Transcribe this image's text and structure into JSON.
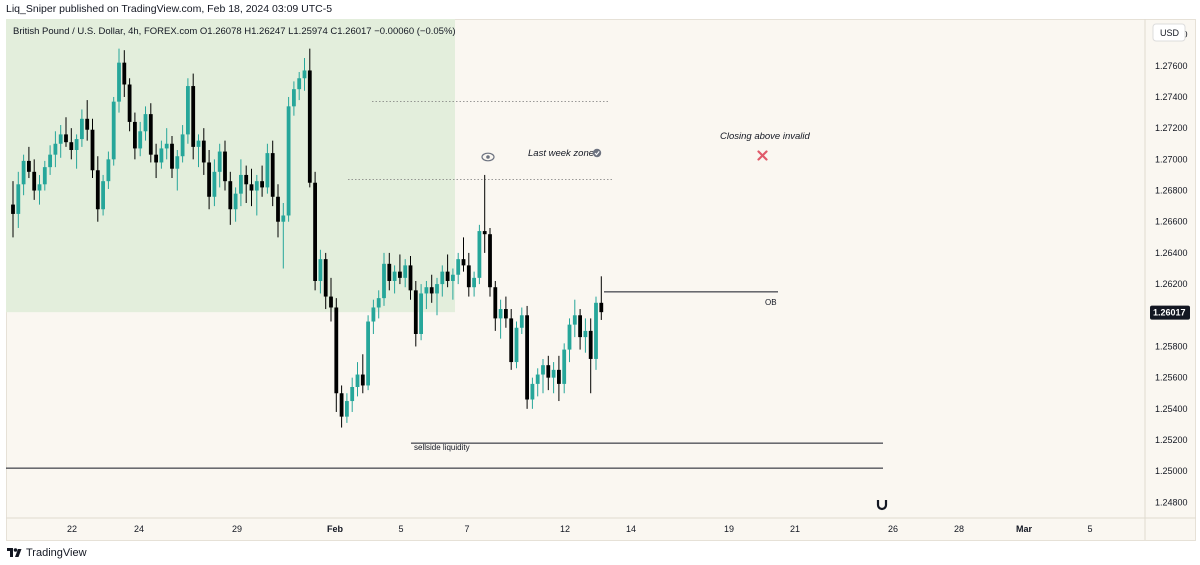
{
  "header": {
    "publisher_line": "Liq_Sniper published on TradingView.com, Feb 18, 2024 03:09 UTC-5"
  },
  "legend": {
    "symbol_line": "British Pound / U.S. Dollar, 4h, FOREX.com  O1.26078  H1.26247  L1.25974  C1.26017  −0.00060 (−0.05%)"
  },
  "currency_label": "USD",
  "last_price_label": "1.26017",
  "annotations": {
    "last_week_zone": "Last week zone",
    "closing_invalid": "Closing above invalid",
    "ob": "OB",
    "sellside": "sellside liquidity"
  },
  "footer": {
    "brand": "TradingView"
  },
  "colors": {
    "up_candle": "#26a69a",
    "down_candle": "#000000",
    "zone_fill": "#e3eedc",
    "price_badge_bg": "#131722",
    "invalid_mark": "#e05a6a"
  },
  "icons": {
    "eye": "eye-icon",
    "check": "check-circle-icon",
    "x": "x-mark-icon",
    "magnet": "magnet-icon",
    "logo": "tradingview-logo-icon"
  },
  "chart_data": {
    "type": "candlestick",
    "ylim": [
      1.247,
      1.279
    ],
    "y_ticks": [
      "1.24800",
      "1.25000",
      "1.25200",
      "1.25400",
      "1.25600",
      "1.25800",
      "1.26000",
      "1.26200",
      "1.26400",
      "1.26600",
      "1.26800",
      "1.27000",
      "1.27200",
      "1.27400",
      "1.27600",
      "1.27800"
    ],
    "x_ticks": [
      "22",
      "24",
      "29",
      "Feb",
      "5",
      "7",
      "12",
      "14",
      "19",
      "21",
      "26",
      "28",
      "Mar",
      "5"
    ],
    "last_close": 1.26017,
    "levels": {
      "zone_low": 1.2602,
      "dotted_top": 1.2737,
      "dotted_mid": 1.2687,
      "ob": 1.2615,
      "sellside": 1.2518,
      "lower_line": 1.2502
    },
    "candles": [
      [
        1.2671,
        1.2686,
        1.265,
        1.2665
      ],
      [
        1.2665,
        1.2692,
        1.2656,
        1.2684
      ],
      [
        1.2684,
        1.2703,
        1.2677,
        1.2699
      ],
      [
        1.2699,
        1.2708,
        1.2688,
        1.2692
      ],
      [
        1.2692,
        1.27,
        1.2674,
        1.268
      ],
      [
        1.268,
        1.269,
        1.2671,
        1.2684
      ],
      [
        1.2684,
        1.2699,
        1.268,
        1.2695
      ],
      [
        1.2695,
        1.2709,
        1.269,
        1.2703
      ],
      [
        1.2703,
        1.2718,
        1.2695,
        1.271
      ],
      [
        1.271,
        1.2722,
        1.2701,
        1.2716
      ],
      [
        1.2716,
        1.2727,
        1.2708,
        1.2711
      ],
      [
        1.2711,
        1.272,
        1.27,
        1.2706
      ],
      [
        1.2706,
        1.2716,
        1.2694,
        1.2713
      ],
      [
        1.2713,
        1.2732,
        1.2708,
        1.2726
      ],
      [
        1.2726,
        1.2738,
        1.2712,
        1.2719
      ],
      [
        1.2719,
        1.2726,
        1.2688,
        1.2693
      ],
      [
        1.2693,
        1.2702,
        1.266,
        1.2668
      ],
      [
        1.2668,
        1.269,
        1.2664,
        1.2686
      ],
      [
        1.2686,
        1.2705,
        1.2681,
        1.27
      ],
      [
        1.27,
        1.274,
        1.2696,
        1.2737
      ],
      [
        1.2737,
        1.2771,
        1.273,
        1.2762
      ],
      [
        1.2762,
        1.277,
        1.274,
        1.2748
      ],
      [
        1.2748,
        1.2752,
        1.2718,
        1.2724
      ],
      [
        1.2724,
        1.273,
        1.27,
        1.2707
      ],
      [
        1.2707,
        1.2724,
        1.2702,
        1.2718
      ],
      [
        1.2718,
        1.2734,
        1.2712,
        1.2729
      ],
      [
        1.2729,
        1.2736,
        1.2698,
        1.2703
      ],
      [
        1.2703,
        1.271,
        1.2688,
        1.2698
      ],
      [
        1.2698,
        1.2712,
        1.2694,
        1.2707
      ],
      [
        1.2707,
        1.272,
        1.27,
        1.271
      ],
      [
        1.271,
        1.2715,
        1.2688,
        1.2694
      ],
      [
        1.2694,
        1.2706,
        1.268,
        1.2702
      ],
      [
        1.2702,
        1.2722,
        1.2698,
        1.2716
      ],
      [
        1.2716,
        1.2752,
        1.271,
        1.2747
      ],
      [
        1.2747,
        1.2755,
        1.27,
        1.2708
      ],
      [
        1.2708,
        1.2716,
        1.2695,
        1.2712
      ],
      [
        1.2712,
        1.272,
        1.269,
        1.2698
      ],
      [
        1.2698,
        1.2706,
        1.2668,
        1.2676
      ],
      [
        1.2676,
        1.27,
        1.267,
        1.2692
      ],
      [
        1.2692,
        1.271,
        1.2682,
        1.2705
      ],
      [
        1.2705,
        1.2712,
        1.268,
        1.2686
      ],
      [
        1.2686,
        1.2692,
        1.2658,
        1.2668
      ],
      [
        1.2668,
        1.2682,
        1.266,
        1.2678
      ],
      [
        1.2678,
        1.27,
        1.267,
        1.269
      ],
      [
        1.269,
        1.2696,
        1.2672,
        1.2684
      ],
      [
        1.2684,
        1.2694,
        1.267,
        1.268
      ],
      [
        1.268,
        1.269,
        1.2664,
        1.2686
      ],
      [
        1.2686,
        1.2696,
        1.2676,
        1.2682
      ],
      [
        1.2682,
        1.271,
        1.2678,
        1.2704
      ],
      [
        1.2704,
        1.2712,
        1.267,
        1.2676
      ],
      [
        1.2676,
        1.2684,
        1.265,
        1.266
      ],
      [
        1.266,
        1.2672,
        1.263,
        1.2664
      ],
      [
        1.2664,
        1.274,
        1.266,
        1.2734
      ],
      [
        1.2734,
        1.275,
        1.2728,
        1.2745
      ],
      [
        1.2745,
        1.2756,
        1.2738,
        1.2752
      ],
      [
        1.2752,
        1.2765,
        1.2744,
        1.2757
      ],
      [
        1.2757,
        1.2771,
        1.2682,
        1.2685
      ],
      [
        1.2685,
        1.2692,
        1.2616,
        1.2622
      ],
      [
        1.2622,
        1.2642,
        1.2614,
        1.2636
      ],
      [
        1.2636,
        1.264,
        1.2604,
        1.2612
      ],
      [
        1.2612,
        1.2624,
        1.2596,
        1.2605
      ],
      [
        1.2605,
        1.2611,
        1.2538,
        1.255
      ],
      [
        1.255,
        1.2555,
        1.2528,
        1.2535
      ],
      [
        1.2535,
        1.255,
        1.2531,
        1.2545
      ],
      [
        1.2545,
        1.256,
        1.2538,
        1.2554
      ],
      [
        1.2554,
        1.257,
        1.2548,
        1.2562
      ],
      [
        1.2562,
        1.2575,
        1.255,
        1.2555
      ],
      [
        1.2555,
        1.26,
        1.2552,
        1.2596
      ],
      [
        1.2596,
        1.261,
        1.2588,
        1.2605
      ],
      [
        1.2605,
        1.2616,
        1.2598,
        1.2611
      ],
      [
        1.2611,
        1.264,
        1.2606,
        1.2633
      ],
      [
        1.2633,
        1.264,
        1.2616,
        1.2622
      ],
      [
        1.2622,
        1.2632,
        1.2614,
        1.2628
      ],
      [
        1.2628,
        1.2639,
        1.262,
        1.2624
      ],
      [
        1.2624,
        1.2636,
        1.2618,
        1.2632
      ],
      [
        1.2632,
        1.2638,
        1.261,
        1.2616
      ],
      [
        1.2616,
        1.2622,
        1.258,
        1.2588
      ],
      [
        1.2588,
        1.262,
        1.2584,
        1.2614
      ],
      [
        1.2614,
        1.2622,
        1.2604,
        1.2618
      ],
      [
        1.2618,
        1.2626,
        1.2608,
        1.2614
      ],
      [
        1.2614,
        1.2624,
        1.26,
        1.262
      ],
      [
        1.262,
        1.2632,
        1.2612,
        1.2628
      ],
      [
        1.2628,
        1.2639,
        1.2618,
        1.2622
      ],
      [
        1.2622,
        1.263,
        1.261,
        1.2626
      ],
      [
        1.2626,
        1.264,
        1.262,
        1.2636
      ],
      [
        1.2636,
        1.265,
        1.2628,
        1.2632
      ],
      [
        1.2632,
        1.264,
        1.2612,
        1.2618
      ],
      [
        1.2618,
        1.2628,
        1.2612,
        1.2624
      ],
      [
        1.2624,
        1.2658,
        1.262,
        1.2654
      ],
      [
        1.2654,
        1.269,
        1.264,
        1.2652
      ],
      [
        1.2652,
        1.2656,
        1.2612,
        1.2618
      ],
      [
        1.2618,
        1.2622,
        1.259,
        1.2598
      ],
      [
        1.2598,
        1.261,
        1.2585,
        1.2604
      ],
      [
        1.2604,
        1.2612,
        1.2592,
        1.2598
      ],
      [
        1.2598,
        1.2604,
        1.2565,
        1.257
      ],
      [
        1.257,
        1.2596,
        1.2566,
        1.2592
      ],
      [
        1.2592,
        1.2605,
        1.2588,
        1.26
      ],
      [
        1.26,
        1.2606,
        1.254,
        1.2546
      ],
      [
        1.2546,
        1.256,
        1.254,
        1.2556
      ],
      [
        1.2556,
        1.2566,
        1.2548,
        1.2562
      ],
      [
        1.2562,
        1.2572,
        1.255,
        1.2568
      ],
      [
        1.2568,
        1.2574,
        1.2552,
        1.256
      ],
      [
        1.256,
        1.257,
        1.255,
        1.2565
      ],
      [
        1.2565,
        1.2574,
        1.2545,
        1.2556
      ],
      [
        1.2556,
        1.2582,
        1.255,
        1.2578
      ],
      [
        1.2578,
        1.2598,
        1.257,
        1.2594
      ],
      [
        1.2594,
        1.261,
        1.2586,
        1.26
      ],
      [
        1.26,
        1.2604,
        1.2578,
        1.2586
      ],
      [
        1.2586,
        1.2598,
        1.2576,
        1.259
      ],
      [
        1.259,
        1.2598,
        1.255,
        1.2572
      ],
      [
        1.2572,
        1.2612,
        1.2565,
        1.2608
      ],
      [
        1.2608,
        1.2625,
        1.2597,
        1.2602
      ]
    ]
  }
}
